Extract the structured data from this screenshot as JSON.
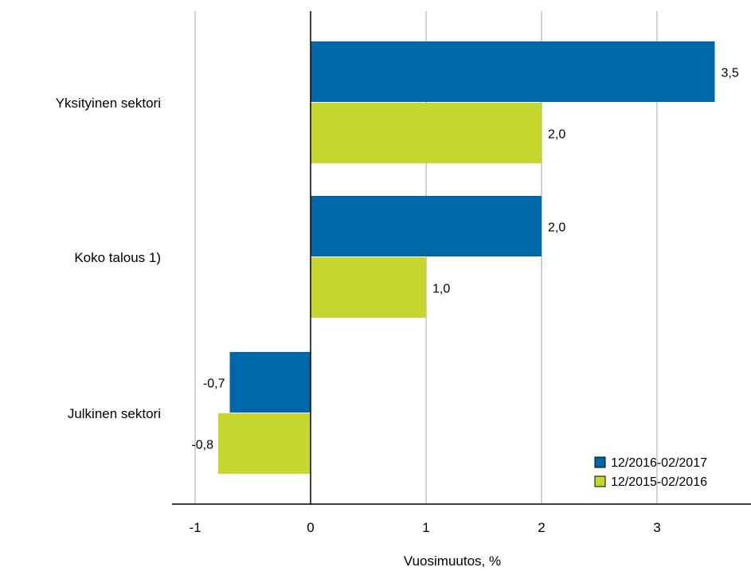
{
  "chart_data": {
    "type": "bar",
    "orientation": "horizontal",
    "categories": [
      "Yksityinen sektori",
      "Koko talous 1)",
      "Julkinen sektori"
    ],
    "series": [
      {
        "name": "12/2016-02/2017",
        "values": [
          3.5,
          2.0,
          -0.7
        ],
        "labels": [
          "3,5",
          "2,0",
          "-0,7"
        ],
        "color": "#0068a8"
      },
      {
        "name": "12/2015-02/2016",
        "values": [
          2.0,
          1.0,
          -0.8
        ],
        "labels": [
          "2,0",
          "1,0",
          "-0,8"
        ],
        "color": "#c5d62e"
      }
    ],
    "xticks": [
      -1,
      0,
      1,
      2,
      3
    ],
    "xtick_labels": [
      "-1",
      "0",
      "1",
      "2",
      "3"
    ],
    "xlim": [
      -1.2,
      3.78
    ],
    "xlabel": "Vuosimuutos, %",
    "grid": "vertical",
    "legend_position": "bottom-right"
  }
}
